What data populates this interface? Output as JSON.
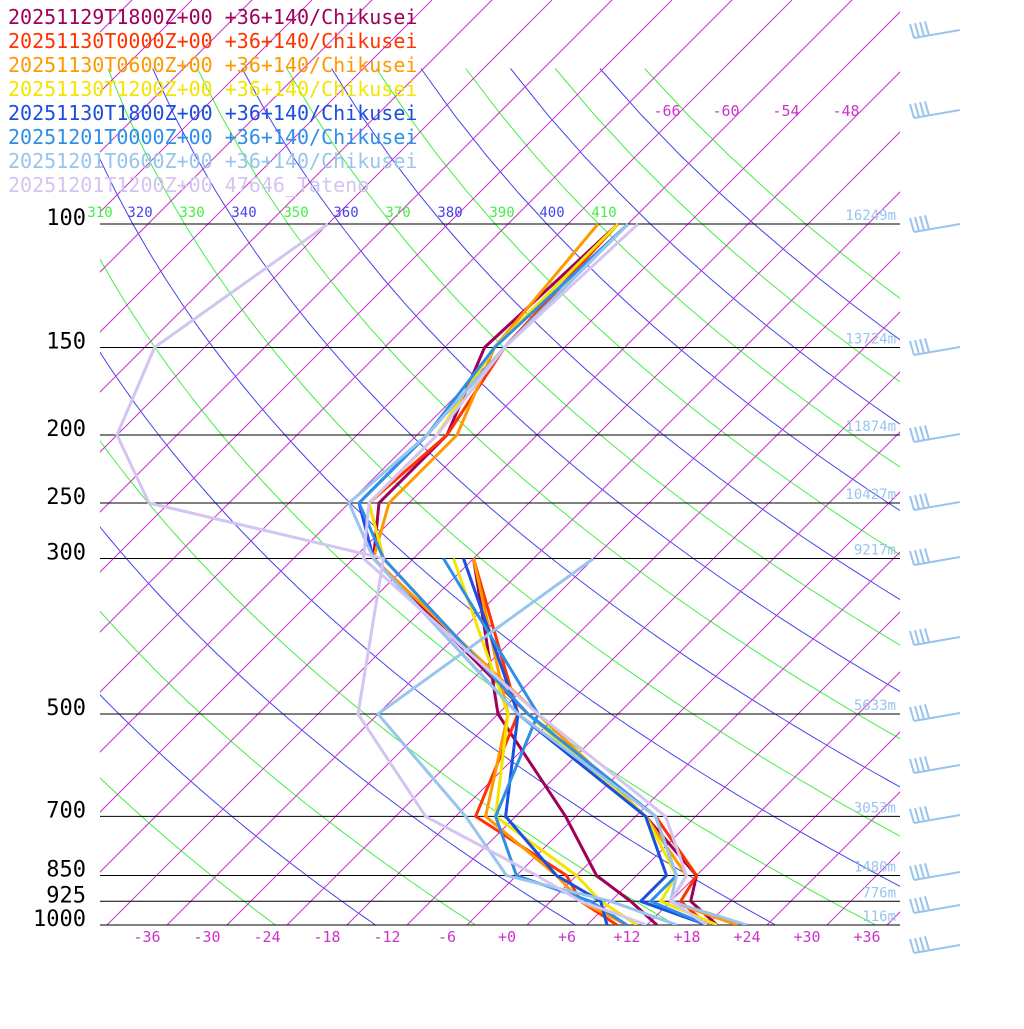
{
  "chart_data": {
    "type": "line",
    "title": "",
    "xlabel": "",
    "ylabel": "",
    "pressure_levels": [
      100,
      150,
      200,
      250,
      300,
      500,
      700,
      850,
      925,
      1000
    ],
    "temperature_ticks": [
      "-36",
      "-30",
      "-24",
      "-18",
      "-12",
      "-6",
      "+0",
      "+6",
      "+12",
      "+18",
      "+24",
      "+30",
      "+36"
    ],
    "temperature_tick_values": [
      -36,
      -30,
      -24,
      -18,
      -12,
      -6,
      0,
      6,
      12,
      18,
      24,
      30,
      36
    ],
    "xlim": [
      -40,
      40
    ],
    "ylim": [
      1000,
      100
    ],
    "mixing_ratio_labels": [
      "-66",
      "-60",
      "-54",
      "-48"
    ],
    "theta_labels": [
      "310",
      "320",
      "330",
      "340",
      "350",
      "360",
      "370",
      "380",
      "390",
      "400",
      "410"
    ],
    "height_labels": [
      {
        "p": 100,
        "text": "16249m"
      },
      {
        "p": 150,
        "text": "13724m"
      },
      {
        "p": 200,
        "text": "11874m"
      },
      {
        "p": 250,
        "text": "10427m"
      },
      {
        "p": 300,
        "text": "9217m"
      },
      {
        "p": 500,
        "text": "5633m"
      },
      {
        "p": 700,
        "text": "3053m"
      },
      {
        "p": 850,
        "text": "1480m"
      },
      {
        "p": 925,
        "text": "776m"
      },
      {
        "p": 1000,
        "text": "116m"
      }
    ],
    "series": [
      {
        "name": "20251129T1800Z+00 +36+140/Chikusei",
        "color": "#a0005a",
        "temperature": [
          [
            100,
            -59
          ],
          [
            150,
            -60
          ],
          [
            200,
            -55
          ],
          [
            250,
            -55
          ],
          [
            300,
            -50
          ],
          [
            500,
            -19
          ],
          [
            700,
            3
          ],
          [
            850,
            14
          ],
          [
            925,
            16
          ],
          [
            1000,
            21
          ]
        ],
        "dewpoint": [
          [
            300,
            -40
          ],
          [
            500,
            -22
          ],
          [
            700,
            -5
          ],
          [
            850,
            4
          ],
          [
            925,
            10
          ],
          [
            1000,
            15
          ]
        ]
      },
      {
        "name": "20251130T0000Z+00 +36+140/Chikusei",
        "color": "#ff3300",
        "temperature": [
          [
            100,
            -59
          ],
          [
            150,
            -58
          ],
          [
            200,
            -55
          ],
          [
            250,
            -56
          ],
          [
            300,
            -49
          ],
          [
            500,
            -19
          ],
          [
            700,
            4
          ],
          [
            850,
            14
          ],
          [
            925,
            15
          ],
          [
            1000,
            20
          ]
        ],
        "dewpoint": [
          [
            300,
            -40
          ],
          [
            500,
            -20
          ],
          [
            700,
            -14
          ],
          [
            850,
            1
          ],
          [
            925,
            5
          ],
          [
            1000,
            11
          ]
        ]
      },
      {
        "name": "20251130T0600Z+00 +36+140/Chikusei",
        "color": "#ff9900",
        "temperature": [
          [
            100,
            -61
          ],
          [
            150,
            -59
          ],
          [
            200,
            -54
          ],
          [
            250,
            -54
          ],
          [
            300,
            -50
          ],
          [
            500,
            -18
          ],
          [
            700,
            3
          ],
          [
            850,
            13
          ],
          [
            925,
            14
          ],
          [
            1000,
            23
          ]
        ],
        "dewpoint": [
          [
            300,
            -40
          ],
          [
            500,
            -21
          ],
          [
            700,
            -13
          ],
          [
            850,
            0
          ],
          [
            925,
            5
          ],
          [
            1000,
            12
          ]
        ]
      },
      {
        "name": "20251130T1200Z+00 +36+140/Chikusei",
        "color": "#f2e600",
        "temperature": [
          [
            100,
            -59
          ],
          [
            150,
            -59
          ],
          [
            200,
            -56
          ],
          [
            250,
            -56
          ],
          [
            300,
            -49
          ],
          [
            500,
            -19
          ],
          [
            700,
            3
          ],
          [
            850,
            12
          ],
          [
            925,
            13
          ],
          [
            1000,
            21
          ]
        ],
        "dewpoint": [
          [
            300,
            -42
          ],
          [
            500,
            -21
          ],
          [
            700,
            -12
          ],
          [
            850,
            2
          ],
          [
            925,
            7
          ],
          [
            1000,
            13
          ]
        ]
      },
      {
        "name": "20251130T1800Z+00 +36+140/Chikusei",
        "color": "#1a4fe0",
        "temperature": [
          [
            100,
            -58
          ],
          [
            150,
            -58
          ],
          [
            200,
            -57
          ],
          [
            250,
            -57
          ],
          [
            300,
            -50
          ],
          [
            500,
            -20
          ],
          [
            700,
            3
          ],
          [
            850,
            11
          ],
          [
            925,
            11
          ],
          [
            1000,
            20
          ]
        ],
        "dewpoint": [
          [
            300,
            -41
          ],
          [
            500,
            -20
          ],
          [
            700,
            -11
          ],
          [
            850,
            0
          ],
          [
            925,
            7
          ],
          [
            1000,
            10
          ]
        ]
      },
      {
        "name": "20251201T0000Z+00 +36+140/Chikusei",
        "color": "#2f8fe8",
        "temperature": [
          [
            100,
            -58
          ],
          [
            150,
            -59
          ],
          [
            200,
            -57
          ],
          [
            250,
            -57
          ],
          [
            300,
            -49
          ],
          [
            500,
            -19
          ],
          [
            700,
            4
          ],
          [
            850,
            12
          ],
          [
            925,
            12
          ],
          [
            1000,
            20
          ]
        ],
        "dewpoint": [
          [
            300,
            -43
          ],
          [
            500,
            -18
          ],
          [
            700,
            -12
          ],
          [
            850,
            -4
          ],
          [
            925,
            6
          ],
          [
            1000,
            12
          ]
        ]
      },
      {
        "name": "20251201T0600Z+00 +36+140/Chikusei",
        "color": "#99c4ee",
        "temperature": [
          [
            100,
            -58
          ],
          [
            150,
            -58
          ],
          [
            200,
            -57
          ],
          [
            250,
            -58
          ],
          [
            300,
            -50
          ],
          [
            500,
            -20
          ],
          [
            700,
            4
          ],
          [
            850,
            12
          ],
          [
            925,
            14
          ],
          [
            1000,
            24
          ]
        ],
        "dewpoint": [
          [
            300,
            -28
          ],
          [
            500,
            -34
          ],
          [
            700,
            -15
          ],
          [
            850,
            -5
          ],
          [
            925,
            8
          ],
          [
            1000,
            17
          ]
        ]
      },
      {
        "name": "20251201T1200Z+00 47646_Tateno",
        "color": "#d4c4f2",
        "temperature": [
          [
            100,
            -57
          ],
          [
            150,
            -58
          ],
          [
            200,
            -56
          ],
          [
            250,
            -56
          ],
          [
            300,
            -51
          ],
          [
            500,
            -18
          ],
          [
            700,
            5
          ],
          [
            850,
            13
          ],
          [
            925,
            14
          ],
          [
            1000,
            20
          ]
        ],
        "dewpoint": [
          [
            100,
            -88
          ],
          [
            150,
            -93
          ],
          [
            200,
            -88
          ],
          [
            250,
            -78
          ],
          [
            300,
            -49
          ],
          [
            500,
            -36
          ],
          [
            700,
            -19
          ],
          [
            850,
            -2
          ],
          [
            925,
            5
          ],
          [
            1000,
            14
          ]
        ]
      }
    ]
  }
}
